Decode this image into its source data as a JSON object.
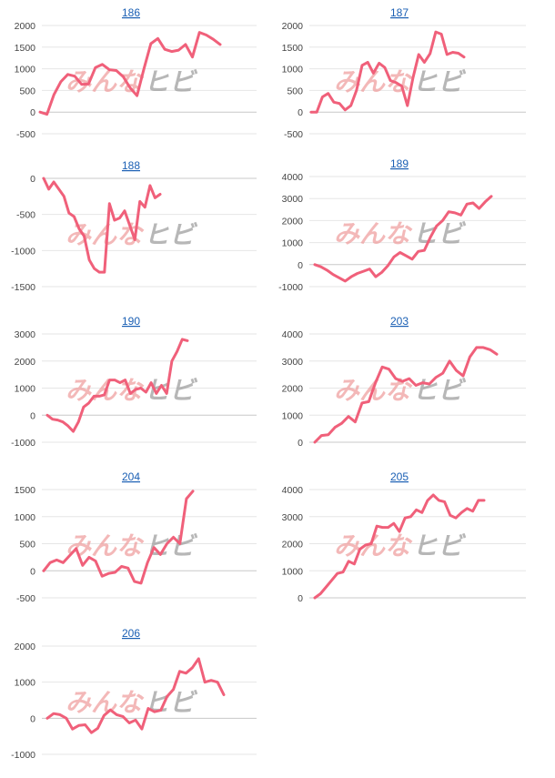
{
  "watermark": {
    "left": "みんな",
    "right": "ヒビ",
    "left_color": "#ef9b9b",
    "right_color": "#9a9a9a"
  },
  "line_color": "#f0607a",
  "chart_data": [
    {
      "type": "line",
      "title": "186",
      "yticks": [
        2000,
        1500,
        1000,
        500,
        0,
        -500
      ],
      "values": [
        0,
        -50,
        400,
        700,
        870,
        830,
        640,
        650,
        1030,
        1100,
        980,
        960,
        820,
        560,
        380,
        1000,
        1580,
        1700,
        1450,
        1400,
        1430,
        1560,
        1270,
        1840,
        1780,
        1680,
        1560
      ]
    },
    {
      "type": "line",
      "title": "187",
      "yticks": [
        2000,
        1500,
        1000,
        500,
        0,
        -500
      ],
      "values": [
        0,
        0,
        350,
        430,
        230,
        200,
        50,
        150,
        500,
        1080,
        1150,
        900,
        1130,
        1030,
        730,
        680,
        600,
        150,
        800,
        1330,
        1150,
        1350,
        1850,
        1800,
        1330,
        1380,
        1360,
        1270
      ]
    },
    {
      "type": "line",
      "title": "188",
      "yticks": [
        0,
        -500,
        -1000,
        -1500
      ],
      "values": [
        0,
        -150,
        -50,
        -150,
        -250,
        -480,
        -530,
        -700,
        -800,
        -1130,
        -1250,
        -1300,
        -1300,
        -350,
        -580,
        -550,
        -450,
        -650,
        -850,
        -320,
        -400,
        -100,
        -270,
        -220
      ]
    },
    {
      "type": "line",
      "title": "189",
      "yticks": [
        4000,
        3000,
        2000,
        1000,
        0,
        -1000
      ],
      "values": [
        0,
        -100,
        -250,
        -450,
        -600,
        -750,
        -550,
        -400,
        -300,
        -200,
        -550,
        -350,
        -50,
        350,
        550,
        400,
        250,
        600,
        650,
        1250,
        1750,
        2000,
        2400,
        2350,
        2250,
        2750,
        2800,
        2550,
        2850,
        3100
      ]
    },
    {
      "type": "line",
      "title": "190",
      "yticks": [
        3000,
        2000,
        1000,
        0,
        -1000
      ],
      "values": [
        0,
        -150,
        -180,
        -250,
        -400,
        -600,
        -250,
        300,
        450,
        700,
        700,
        750,
        1300,
        1300,
        1200,
        1300,
        800,
        950,
        1000,
        850,
        1200,
        800,
        1100,
        800,
        2000,
        2350,
        2800,
        2750
      ]
    },
    {
      "type": "line",
      "title": "203",
      "yticks": [
        4000,
        3000,
        2000,
        1000,
        0
      ],
      "values": [
        0,
        250,
        280,
        550,
        700,
        950,
        750,
        1450,
        1500,
        2200,
        2780,
        2700,
        2350,
        2250,
        2350,
        2100,
        2200,
        2150,
        2400,
        2550,
        3000,
        2650,
        2450,
        3150,
        3500,
        3500,
        3420,
        3250
      ]
    },
    {
      "type": "line",
      "title": "204",
      "yticks": [
        1500,
        1000,
        500,
        0,
        -500
      ],
      "values": [
        0,
        150,
        200,
        150,
        280,
        410,
        100,
        250,
        180,
        -100,
        -50,
        -30,
        80,
        50,
        -200,
        -230,
        150,
        430,
        300,
        500,
        620,
        500,
        1330,
        1470
      ]
    },
    {
      "type": "line",
      "title": "205",
      "yticks": [
        4000,
        3000,
        2000,
        1000,
        0
      ],
      "values": [
        0,
        150,
        400,
        650,
        900,
        950,
        1350,
        1250,
        1800,
        1950,
        2000,
        2650,
        2600,
        2600,
        2750,
        2450,
        2950,
        3000,
        3250,
        3150,
        3600,
        3800,
        3600,
        3550,
        3050,
        2950,
        3150,
        3300,
        3200,
        3600,
        3600
      ]
    },
    {
      "type": "line",
      "title": "206",
      "yticks": [
        2000,
        1000,
        0,
        -1000
      ],
      "values": [
        0,
        130,
        100,
        0,
        -300,
        -200,
        -180,
        -400,
        -280,
        80,
        230,
        100,
        50,
        -130,
        -50,
        -300,
        270,
        180,
        220,
        600,
        800,
        1300,
        1250,
        1400,
        1650,
        1000,
        1050,
        1000,
        650
      ]
    }
  ]
}
